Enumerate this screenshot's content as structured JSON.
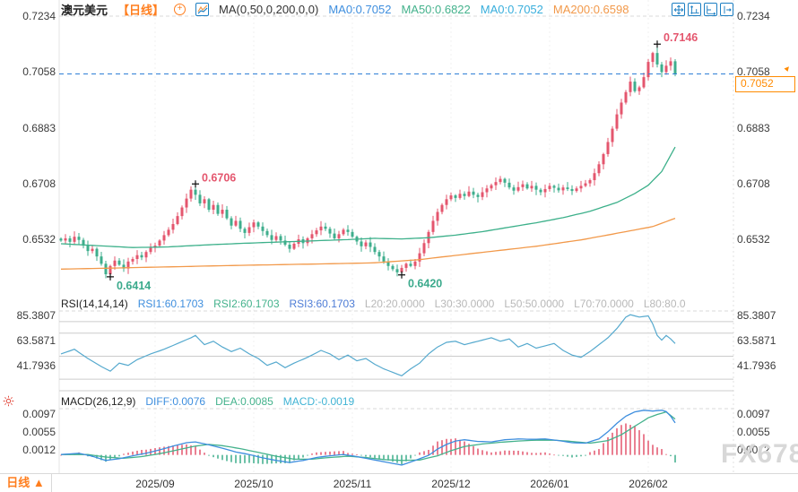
{
  "header": {
    "symbol": "澳元美元",
    "timeframe": "【日线】",
    "ma_settings": "MA(0,50,0,200,0,0)",
    "ma_values": [
      {
        "label": "MA0:0.7052",
        "color": "#3E8EDE"
      },
      {
        "label": "MA50:0.6822",
        "color": "#44B28C"
      },
      {
        "label": "MA0:0.7052",
        "color": "#38AEDC"
      },
      {
        "label": "MA200:0.6598",
        "color": "#F2994A"
      }
    ],
    "add_icon_glyph": "+",
    "icons": {
      "add": "circle-plus-icon",
      "chart": "line-chart-icon"
    }
  },
  "toolbar": {
    "icons": [
      "move-crosshair",
      "scale-vertical",
      "scale-horizontal",
      "pan-right"
    ]
  },
  "main_axis": {
    "ticks": [
      "0.7234",
      "0.7058",
      "0.6883",
      "0.6708",
      "0.6532"
    ]
  },
  "current_price": {
    "value": "0.7052",
    "line_color": "#2E7FD6",
    "tag_color": "#FF8A00",
    "arrow": "▲"
  },
  "rsi_header": {
    "title": "RSI(14,14,14)",
    "items": [
      {
        "label": "RSI1:60.1703",
        "color": "#3E8EDE"
      },
      {
        "label": "RSI2:60.1703",
        "color": "#44B28C"
      },
      {
        "label": "RSI3:60.1703",
        "color": "#4D7CD6"
      },
      {
        "label": "L20:20.0000",
        "color": "#B8B8B8"
      },
      {
        "label": "L30:30.0000",
        "color": "#B8B8B8"
      },
      {
        "label": "L50:50.0000",
        "color": "#B8B8B8"
      },
      {
        "label": "L70:70.0000",
        "color": "#B8B8B8"
      },
      {
        "label": "L80:80.0",
        "color": "#B8B8B8"
      }
    ]
  },
  "rsi_axis": {
    "ticks": [
      "85.3807",
      "63.5871",
      "41.7936"
    ]
  },
  "macd_header": {
    "title": "MACD(26,12,9)",
    "items": [
      {
        "label": "DIFF:0.0076",
        "color": "#3E8EDE"
      },
      {
        "label": "DEA:0.0085",
        "color": "#44B28C"
      },
      {
        "label": "MACD:-0.0019",
        "color": "#3FB3D4"
      }
    ]
  },
  "macd_axis": {
    "ticks": [
      "0.0097",
      "0.0055",
      "0.0012"
    ]
  },
  "time_axis": {
    "labels": [
      "2025/09",
      "2025/10",
      "2025/11",
      "2025/12",
      "2026/01",
      "2026/02"
    ]
  },
  "bottom_bar": {
    "timeframe": "日线 ▲"
  },
  "watermark": "FX678",
  "chart_data": [
    {
      "type": "candlestick",
      "title": "澳元美元 日线 (AUD/USD daily)",
      "up_color": "#E4566E",
      "down_color": "#3EAE8C",
      "ma50_color": "#3CB08A",
      "ma200_color": "#F2994A",
      "yticks": [
        0.7234,
        0.7058,
        0.6883,
        0.6708,
        0.6532
      ],
      "last_price": 0.7052,
      "month_tick_indices": [
        21,
        43,
        65,
        87,
        109,
        131
      ],
      "closes": [
        0.6528,
        0.6535,
        0.6524,
        0.654,
        0.653,
        0.6512,
        0.6495,
        0.6502,
        0.6478,
        0.6455,
        0.6422,
        0.6448,
        0.6465,
        0.6452,
        0.644,
        0.6462,
        0.647,
        0.6482,
        0.6475,
        0.6492,
        0.6505,
        0.6512,
        0.6528,
        0.6545,
        0.6562,
        0.658,
        0.6605,
        0.6632,
        0.666,
        0.6688,
        0.6672,
        0.6645,
        0.6658,
        0.6625,
        0.664,
        0.6612,
        0.6625,
        0.6598,
        0.6575,
        0.659,
        0.6565,
        0.6552,
        0.657,
        0.6585,
        0.6572,
        0.6558,
        0.6545,
        0.653,
        0.6542,
        0.6528,
        0.6515,
        0.6502,
        0.6518,
        0.6532,
        0.652,
        0.6535,
        0.6548,
        0.656,
        0.6572,
        0.6565,
        0.655,
        0.6535,
        0.6548,
        0.6562,
        0.6555,
        0.654,
        0.6525,
        0.651,
        0.6522,
        0.6508,
        0.6492,
        0.6478,
        0.6462,
        0.6448,
        0.6438,
        0.6428,
        0.6442,
        0.6455,
        0.6448,
        0.6462,
        0.6488,
        0.652,
        0.6555,
        0.659,
        0.6618,
        0.664,
        0.6658,
        0.667,
        0.6662,
        0.6675,
        0.6668,
        0.6682,
        0.6672,
        0.6665,
        0.668,
        0.6692,
        0.6702,
        0.6712,
        0.6722,
        0.671,
        0.6695,
        0.6685,
        0.6696,
        0.6705,
        0.6692,
        0.67,
        0.6688,
        0.668,
        0.669,
        0.67,
        0.6694,
        0.6686,
        0.6695,
        0.669,
        0.6684,
        0.6692,
        0.67,
        0.6708,
        0.6718,
        0.674,
        0.6768,
        0.68,
        0.6838,
        0.688,
        0.6925,
        0.6962,
        0.6995,
        0.7028,
        0.6998,
        0.701,
        0.7042,
        0.709,
        0.7118,
        0.7082,
        0.7058,
        0.7078,
        0.7092,
        0.7052
      ],
      "key_points": [
        {
          "index": 11,
          "price": 0.6414,
          "kind": "low",
          "label": "0.6414",
          "label_color": "#3BAA8C"
        },
        {
          "index": 30,
          "price": 0.6706,
          "kind": "high",
          "label": "0.6706",
          "label_color": "#E4566E"
        },
        {
          "index": 76,
          "price": 0.642,
          "kind": "low",
          "label": "0.6420",
          "label_color": "#3BAA8C"
        },
        {
          "index": 133,
          "price": 0.7146,
          "kind": "high",
          "label": "0.7146",
          "label_color": "#E4566E"
        }
      ],
      "ma50_points": [
        [
          0,
          0.6518
        ],
        [
          8,
          0.6512
        ],
        [
          16,
          0.6506
        ],
        [
          24,
          0.6508
        ],
        [
          32,
          0.6514
        ],
        [
          40,
          0.6519
        ],
        [
          48,
          0.6523
        ],
        [
          56,
          0.6527
        ],
        [
          64,
          0.6531
        ],
        [
          70,
          0.6535
        ],
        [
          76,
          0.6533
        ],
        [
          82,
          0.6537
        ],
        [
          88,
          0.6545
        ],
        [
          94,
          0.6556
        ],
        [
          100,
          0.657
        ],
        [
          106,
          0.6584
        ],
        [
          112,
          0.66
        ],
        [
          118,
          0.662
        ],
        [
          124,
          0.6648
        ],
        [
          128,
          0.6676
        ],
        [
          131,
          0.6702
        ],
        [
          134,
          0.6745
        ],
        [
          137,
          0.6822
        ]
      ],
      "ma200_points": [
        [
          0,
          0.6438
        ],
        [
          20,
          0.6444
        ],
        [
          40,
          0.645
        ],
        [
          60,
          0.6455
        ],
        [
          70,
          0.6458
        ],
        [
          80,
          0.6468
        ],
        [
          86,
          0.6478
        ],
        [
          96,
          0.6494
        ],
        [
          106,
          0.651
        ],
        [
          116,
          0.653
        ],
        [
          126,
          0.6556
        ],
        [
          132,
          0.6572
        ],
        [
          137,
          0.6598
        ]
      ]
    },
    {
      "type": "line",
      "name": "RSI",
      "line_color": "#55A9CE",
      "level_line_color": "#CCCCCC",
      "levels": [
        20,
        30,
        50,
        70,
        80
      ],
      "yticks": [
        85.3807,
        63.5871,
        41.7936
      ],
      "last_value": 60.1703,
      "points": [
        [
          0,
          52
        ],
        [
          3,
          56
        ],
        [
          6,
          48
        ],
        [
          9,
          41
        ],
        [
          11,
          37
        ],
        [
          13,
          44
        ],
        [
          15,
          42
        ],
        [
          17,
          47
        ],
        [
          20,
          52
        ],
        [
          23,
          56
        ],
        [
          26,
          61
        ],
        [
          29,
          66
        ],
        [
          30,
          68
        ],
        [
          32,
          60
        ],
        [
          34,
          63
        ],
        [
          36,
          58
        ],
        [
          38,
          54
        ],
        [
          40,
          57
        ],
        [
          42,
          52
        ],
        [
          44,
          48
        ],
        [
          46,
          42
        ],
        [
          48,
          45
        ],
        [
          50,
          40
        ],
        [
          52,
          44
        ],
        [
          55,
          49
        ],
        [
          58,
          55
        ],
        [
          60,
          52
        ],
        [
          62,
          47
        ],
        [
          64,
          51
        ],
        [
          66,
          46
        ],
        [
          68,
          48
        ],
        [
          70,
          43
        ],
        [
          72,
          39
        ],
        [
          76,
          33
        ],
        [
          78,
          39
        ],
        [
          80,
          44
        ],
        [
          82,
          52
        ],
        [
          84,
          58
        ],
        [
          86,
          62
        ],
        [
          88,
          63
        ],
        [
          90,
          60
        ],
        [
          92,
          62
        ],
        [
          94,
          64
        ],
        [
          96,
          66
        ],
        [
          98,
          63
        ],
        [
          100,
          65
        ],
        [
          102,
          58
        ],
        [
          104,
          61
        ],
        [
          106,
          57
        ],
        [
          108,
          59
        ],
        [
          110,
          61
        ],
        [
          112,
          55
        ],
        [
          114,
          51
        ],
        [
          116,
          49
        ],
        [
          118,
          54
        ],
        [
          120,
          60
        ],
        [
          122,
          66
        ],
        [
          124,
          74
        ],
        [
          126,
          84
        ],
        [
          127,
          86
        ],
        [
          129,
          84
        ],
        [
          131,
          85
        ],
        [
          132,
          78
        ],
        [
          133,
          68
        ],
        [
          134,
          64
        ],
        [
          135,
          68
        ],
        [
          136,
          65
        ],
        [
          137,
          61
        ]
      ]
    },
    {
      "type": "macd",
      "diff_color": "#3E8EDE",
      "dea_color": "#44B28C",
      "hist_up_color": "#E4566E",
      "hist_down_color": "#3EAE8C",
      "yticks": [
        0.0097,
        0.0055,
        0.0012
      ],
      "last_values": {
        "diff": 0.0076,
        "dea": 0.0085,
        "macd": -0.0019
      },
      "hist_rule": "2*(diff-dea)",
      "diff_points": [
        [
          0,
          0.0001
        ],
        [
          4,
          0.0004
        ],
        [
          7,
          -0.0003
        ],
        [
          10,
          -0.0013
        ],
        [
          13,
          -0.0009
        ],
        [
          16,
          -0.0002
        ],
        [
          19,
          0.0004
        ],
        [
          22,
          0.0012
        ],
        [
          25,
          0.0021
        ],
        [
          28,
          0.0029
        ],
        [
          30,
          0.0031
        ],
        [
          33,
          0.0024
        ],
        [
          36,
          0.0016
        ],
        [
          39,
          0.0007
        ],
        [
          42,
          0.0001
        ],
        [
          45,
          -0.0007
        ],
        [
          48,
          -0.0013
        ],
        [
          51,
          -0.0018
        ],
        [
          54,
          -0.0013
        ],
        [
          57,
          -0.0006
        ],
        [
          60,
          -0.0002
        ],
        [
          63,
          0.0001
        ],
        [
          66,
          -0.0004
        ],
        [
          69,
          -0.001
        ],
        [
          72,
          -0.0016
        ],
        [
          76,
          -0.0024
        ],
        [
          79,
          -0.0013
        ],
        [
          82,
          -0.0001
        ],
        [
          84,
          0.0014
        ],
        [
          86,
          0.0025
        ],
        [
          88,
          0.0033
        ],
        [
          90,
          0.0036
        ],
        [
          93,
          0.0032
        ],
        [
          96,
          0.0031
        ],
        [
          99,
          0.0036
        ],
        [
          102,
          0.0038
        ],
        [
          105,
          0.0037
        ],
        [
          108,
          0.0038
        ],
        [
          111,
          0.0034
        ],
        [
          114,
          0.0029
        ],
        [
          117,
          0.0028
        ],
        [
          120,
          0.0038
        ],
        [
          122,
          0.0055
        ],
        [
          124,
          0.0075
        ],
        [
          126,
          0.0092
        ],
        [
          128,
          0.0102
        ],
        [
          130,
          0.0106
        ],
        [
          132,
          0.0104
        ],
        [
          134,
          0.0106
        ],
        [
          135,
          0.0103
        ],
        [
          136,
          0.0092
        ],
        [
          137,
          0.0076
        ]
      ],
      "dea_points": [
        [
          0,
          0.0001
        ],
        [
          6,
          0.0001
        ],
        [
          10,
          -0.0005
        ],
        [
          14,
          -0.0008
        ],
        [
          18,
          -0.0004
        ],
        [
          22,
          0.0003
        ],
        [
          26,
          0.0012
        ],
        [
          30,
          0.0021
        ],
        [
          33,
          0.0025
        ],
        [
          36,
          0.0022
        ],
        [
          40,
          0.0015
        ],
        [
          44,
          0.0006
        ],
        [
          48,
          -0.0003
        ],
        [
          52,
          -0.001
        ],
        [
          56,
          -0.001
        ],
        [
          60,
          -0.0006
        ],
        [
          64,
          -0.0003
        ],
        [
          68,
          -0.0006
        ],
        [
          72,
          -0.0011
        ],
        [
          76,
          -0.0013
        ],
        [
          80,
          -0.0012
        ],
        [
          84,
          -0.0002
        ],
        [
          87,
          0.001
        ],
        [
          90,
          0.002
        ],
        [
          94,
          0.0026
        ],
        [
          98,
          0.003
        ],
        [
          102,
          0.0033
        ],
        [
          106,
          0.0035
        ],
        [
          110,
          0.0035
        ],
        [
          114,
          0.0032
        ],
        [
          118,
          0.0028
        ],
        [
          122,
          0.0034
        ],
        [
          125,
          0.0048
        ],
        [
          128,
          0.0068
        ],
        [
          131,
          0.0088
        ],
        [
          133,
          0.0096
        ],
        [
          135,
          0.0102
        ],
        [
          137,
          0.0085
        ]
      ]
    }
  ]
}
